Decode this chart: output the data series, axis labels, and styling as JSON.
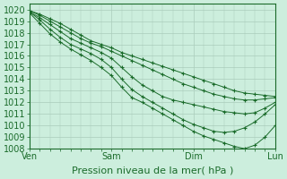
{
  "title": "",
  "xlabel": "Pression niveau de la mer( hPa )",
  "ylabel": "",
  "bg_color": "#cceedd",
  "grid_color": "#aaccbb",
  "line_color": "#1a6b2a",
  "marker": "+",
  "ylim": [
    1008,
    1020.5
  ],
  "xlim": [
    0,
    72
  ],
  "xticks": [
    0,
    24,
    48,
    72
  ],
  "xtick_labels": [
    "Ven",
    "Sam",
    "Dim",
    "Lun"
  ],
  "yticks": [
    1008,
    1009,
    1010,
    1011,
    1012,
    1013,
    1014,
    1015,
    1016,
    1017,
    1018,
    1019,
    1020
  ],
  "lines": [
    {
      "x": [
        0,
        3,
        6,
        9,
        12,
        15,
        18,
        21,
        24,
        27,
        30,
        33,
        36,
        39,
        42,
        45,
        48,
        51,
        54,
        57,
        60,
        63,
        66,
        69,
        72
      ],
      "y": [
        1019.9,
        1019.6,
        1019.2,
        1018.8,
        1018.3,
        1017.8,
        1017.3,
        1017.0,
        1016.7,
        1016.3,
        1016.0,
        1015.7,
        1015.4,
        1015.1,
        1014.8,
        1014.5,
        1014.2,
        1013.9,
        1013.6,
        1013.3,
        1013.0,
        1012.8,
        1012.7,
        1012.6,
        1012.5
      ]
    },
    {
      "x": [
        0,
        3,
        6,
        9,
        12,
        15,
        18,
        21,
        24,
        27,
        30,
        33,
        36,
        39,
        42,
        45,
        48,
        51,
        54,
        57,
        60,
        63,
        66,
        69,
        72
      ],
      "y": [
        1019.9,
        1019.5,
        1019.0,
        1018.5,
        1018.0,
        1017.5,
        1017.1,
        1016.8,
        1016.4,
        1016.0,
        1015.6,
        1015.2,
        1014.8,
        1014.4,
        1014.0,
        1013.6,
        1013.3,
        1013.0,
        1012.7,
        1012.5,
        1012.3,
        1012.2,
        1012.2,
        1012.3,
        1012.4
      ]
    },
    {
      "x": [
        0,
        3,
        6,
        9,
        12,
        15,
        18,
        21,
        24,
        27,
        30,
        33,
        36,
        39,
        42,
        45,
        48,
        51,
        54,
        57,
        60,
        63,
        66,
        69,
        72
      ],
      "y": [
        1019.8,
        1019.3,
        1018.7,
        1018.1,
        1017.5,
        1017.1,
        1016.7,
        1016.3,
        1015.8,
        1015.0,
        1014.2,
        1013.5,
        1013.0,
        1012.5,
        1012.2,
        1012.0,
        1011.8,
        1011.6,
        1011.4,
        1011.2,
        1011.1,
        1011.0,
        1011.1,
        1011.5,
        1012.0
      ]
    },
    {
      "x": [
        0,
        3,
        6,
        9,
        12,
        15,
        18,
        21,
        24,
        27,
        30,
        33,
        36,
        39,
        42,
        45,
        48,
        51,
        54,
        57,
        60,
        63,
        66,
        69,
        72
      ],
      "y": [
        1019.8,
        1019.1,
        1018.3,
        1017.6,
        1017.0,
        1016.6,
        1016.2,
        1015.7,
        1015.0,
        1014.0,
        1013.1,
        1012.5,
        1012.0,
        1011.5,
        1011.0,
        1010.5,
        1010.1,
        1009.8,
        1009.5,
        1009.4,
        1009.5,
        1009.8,
        1010.3,
        1011.0,
        1011.8
      ]
    },
    {
      "x": [
        0,
        3,
        6,
        9,
        12,
        15,
        18,
        21,
        24,
        27,
        30,
        33,
        36,
        39,
        42,
        45,
        48,
        51,
        54,
        57,
        60,
        63,
        66,
        69,
        72
      ],
      "y": [
        1019.7,
        1018.8,
        1017.9,
        1017.2,
        1016.6,
        1016.1,
        1015.6,
        1015.0,
        1014.3,
        1013.3,
        1012.4,
        1012.0,
        1011.5,
        1011.0,
        1010.5,
        1010.0,
        1009.5,
        1009.1,
        1008.8,
        1008.5,
        1008.2,
        1008.0,
        1008.3,
        1009.0,
        1010.0
      ]
    }
  ],
  "font_color": "#1a6b2a",
  "tick_font_size": 7,
  "xlabel_font_size": 8
}
